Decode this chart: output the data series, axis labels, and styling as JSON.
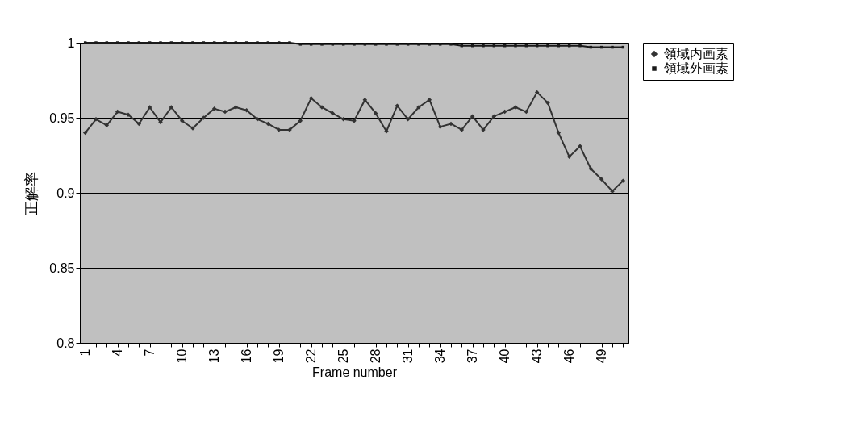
{
  "chart_data": {
    "type": "line",
    "xlabel": "Frame number",
    "ylabel": "正解率",
    "categories": [
      "1",
      null,
      null,
      "4",
      null,
      null,
      "7",
      null,
      null,
      "10",
      null,
      null,
      "13",
      null,
      null,
      "16",
      null,
      null,
      "19",
      null,
      null,
      "22",
      null,
      null,
      "25",
      null,
      null,
      "28",
      null,
      null,
      "31",
      null,
      null,
      "34",
      null,
      null,
      "37",
      null,
      null,
      "40",
      null,
      null,
      "43",
      null,
      null,
      "46",
      null,
      null,
      "49",
      null,
      null
    ],
    "series": [
      {
        "name": "領域内画素",
        "color": "#333333",
        "marker": "diamond",
        "values": [
          0.94,
          0.949,
          0.945,
          0.954,
          0.952,
          0.946,
          0.957,
          0.947,
          0.957,
          0.948,
          0.943,
          0.95,
          0.956,
          0.954,
          0.957,
          0.955,
          0.949,
          0.946,
          0.942,
          0.942,
          0.948,
          0.963,
          0.957,
          0.953,
          0.949,
          0.948,
          0.962,
          0.953,
          0.941,
          0.958,
          0.949,
          0.957,
          0.962,
          0.944,
          0.946,
          0.942,
          0.951,
          0.942,
          0.951,
          0.954,
          0.957,
          0.954,
          0.967,
          0.96,
          0.94,
          0.924,
          0.931,
          0.916,
          0.909,
          0.901,
          0.908
        ]
      },
      {
        "name": "領域外画素",
        "color": "#1a1a1a",
        "marker": "square",
        "values": [
          1,
          1,
          1,
          1,
          1,
          1,
          1,
          1,
          1,
          1,
          1,
          1,
          1,
          1,
          1,
          1,
          1,
          1,
          1,
          1,
          0.999,
          0.999,
          0.999,
          0.999,
          0.999,
          0.999,
          0.999,
          0.999,
          0.999,
          0.999,
          0.999,
          0.999,
          0.999,
          0.999,
          0.999,
          0.998,
          0.998,
          0.998,
          0.998,
          0.998,
          0.998,
          0.998,
          0.998,
          0.998,
          0.998,
          0.998,
          0.998,
          0.997,
          0.997,
          0.997,
          0.997
        ]
      }
    ],
    "ylim": [
      0.8,
      1
    ],
    "yticks": [
      0.8,
      0.85,
      0.9,
      0.95,
      1
    ],
    "grid": "y",
    "legend": "right",
    "line_style": "solid"
  }
}
